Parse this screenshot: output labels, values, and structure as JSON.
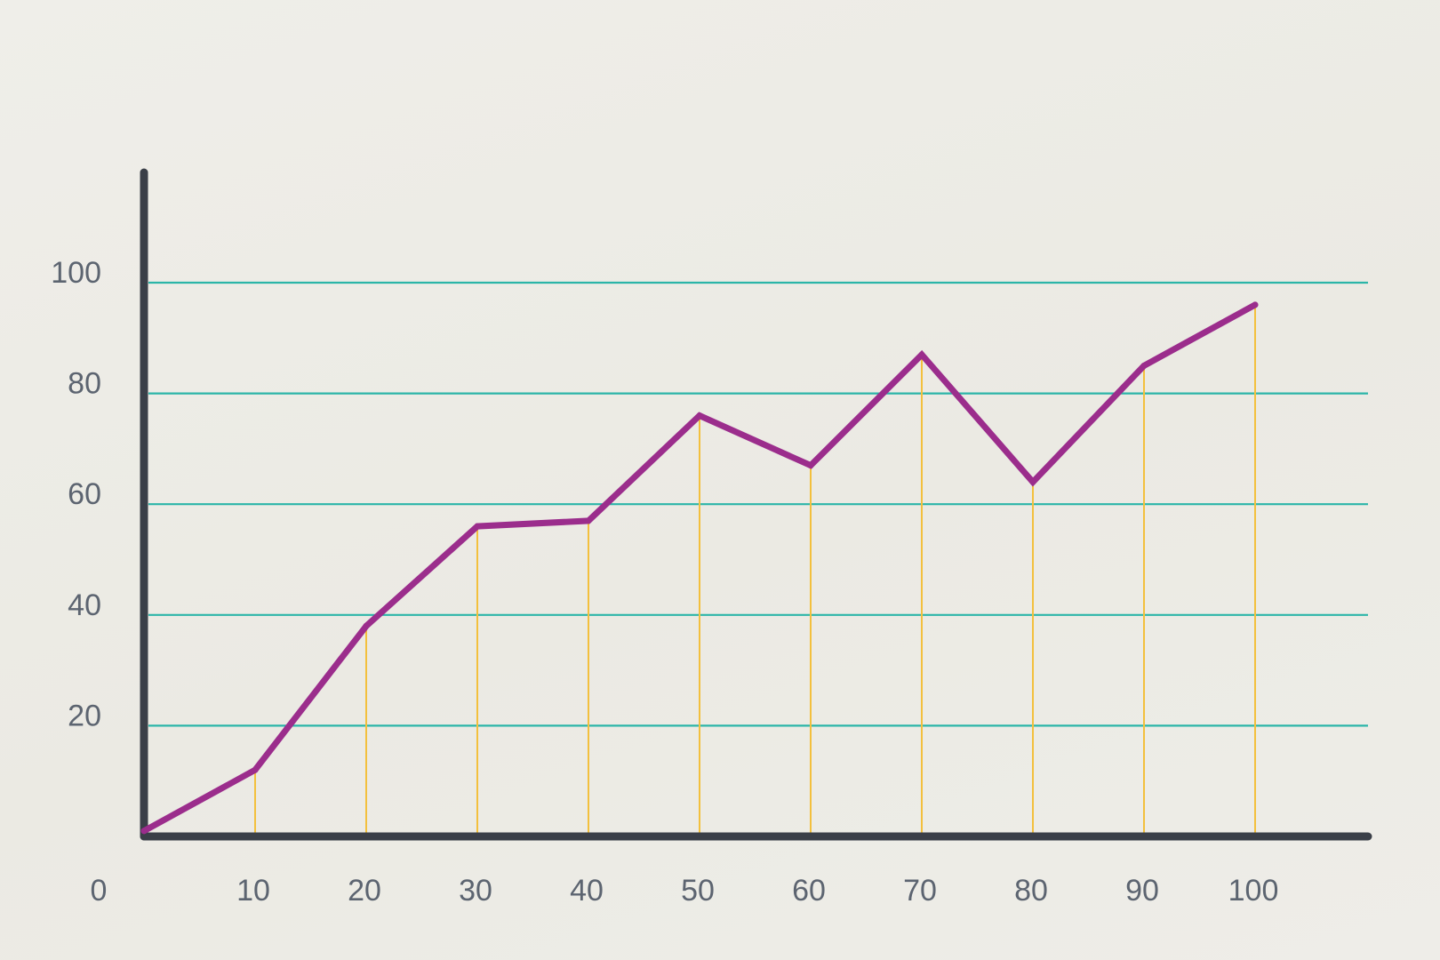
{
  "chart_data": {
    "type": "line",
    "title": "",
    "xlabel": "",
    "ylabel": "",
    "x": [
      0,
      10,
      20,
      30,
      40,
      50,
      60,
      70,
      80,
      90,
      100
    ],
    "series": [
      {
        "values": [
          1,
          12,
          38,
          56,
          57,
          76,
          67,
          87,
          64,
          85,
          96
        ]
      }
    ],
    "xlim": [
      0,
      110
    ],
    "ylim": [
      0,
      120
    ],
    "x_ticks": [
      "0",
      "10",
      "20",
      "30",
      "40",
      "50",
      "60",
      "70",
      "80",
      "90",
      "100"
    ],
    "y_ticks": [
      "20",
      "40",
      "60",
      "80",
      "100"
    ],
    "y_tick_values": [
      20,
      40,
      60,
      80,
      100
    ],
    "grid": true,
    "drop_lines": true,
    "colors": {
      "line": "#9b2d8c",
      "grid": "#2bb5a8",
      "drop_lines": "#f3c03d",
      "axes": "#3a3f48",
      "tick_text": "#5c6470"
    }
  }
}
